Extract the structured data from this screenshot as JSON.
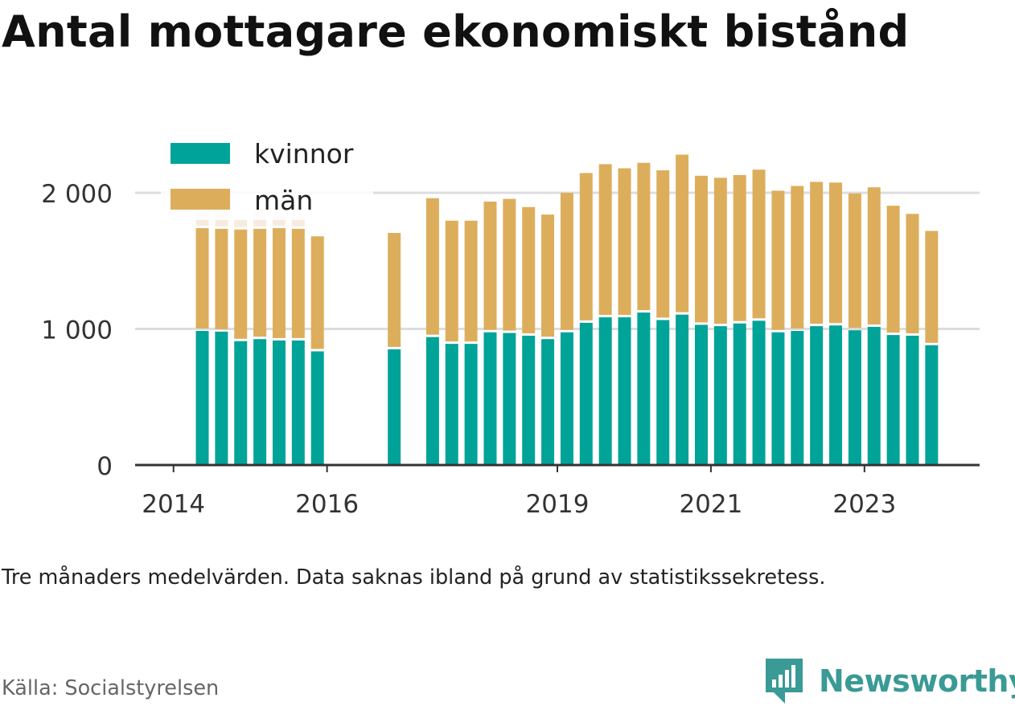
{
  "title": "Antal mottagare ekonomiskt bistånd",
  "note": "Tre månaders medelvärden. Data saknas ibland på grund av statistikssekretess.",
  "source": "Källa: Socialstyrelsen",
  "brand": {
    "name": "Newsworthy",
    "icon": "newsworthy-logo-icon",
    "color": "#3a9a95"
  },
  "colors": {
    "kvinnor": "#00a398",
    "man": "#dcae5c",
    "man_faded": "#f7ebe0",
    "axis": "#333333",
    "grid": "#dddddd"
  },
  "chart_data": {
    "type": "bar",
    "stacked": true,
    "ylim": [
      0,
      2300
    ],
    "yticks": [
      0,
      1000,
      2000
    ],
    "ytick_labels": [
      "0",
      "1 000",
      "2 000"
    ],
    "xtick_labels": [
      "2014",
      "2016",
      "2019",
      "2021",
      "2023"
    ],
    "xtick_values": [
      2014.0,
      2016.0,
      2019.0,
      2021.0,
      2023.0
    ],
    "x_range": [
      2013.5,
      2024.5
    ],
    "grid": true,
    "legend_position": "top-left",
    "x": [
      2014.375,
      2014.625,
      2014.875,
      2015.125,
      2015.375,
      2015.625,
      2015.875,
      2016.875,
      2017.375,
      2017.625,
      2017.875,
      2018.125,
      2018.375,
      2018.625,
      2018.875,
      2019.125,
      2019.375,
      2019.625,
      2019.875,
      2020.125,
      2020.375,
      2020.625,
      2020.875,
      2021.125,
      2021.375,
      2021.625,
      2021.875,
      2022.125,
      2022.375,
      2022.625,
      2022.875,
      2023.125,
      2023.375,
      2023.625,
      2023.875
    ],
    "series": [
      {
        "name": "kvinnor",
        "values": [
          985,
          980,
          910,
          925,
          915,
          915,
          835,
          850,
          940,
          890,
          890,
          975,
          970,
          950,
          925,
          975,
          1045,
          1085,
          1085,
          1120,
          1065,
          1105,
          1030,
          1020,
          1040,
          1060,
          975,
          985,
          1020,
          1025,
          990,
          1015,
          955,
          950,
          880
        ]
      },
      {
        "name": "män",
        "values": [
          755,
          755,
          820,
          810,
          825,
          820,
          845,
          855,
          1020,
          905,
          905,
          960,
          985,
          945,
          915,
          1025,
          1100,
          1125,
          1095,
          1100,
          1100,
          1175,
          1095,
          1090,
          1090,
          1110,
          1040,
          1065,
          1060,
          1050,
          1005,
          1025,
          950,
          895,
          840
        ]
      },
      {
        "name": "män_faded",
        "values": [
          145,
          145,
          75,
          145,
          90,
          90,
          0,
          0,
          0,
          0,
          0,
          0,
          0,
          0,
          0,
          0,
          0,
          0,
          0,
          0,
          0,
          0,
          0,
          0,
          0,
          0,
          0,
          0,
          0,
          0,
          0,
          0,
          0,
          0,
          0
        ]
      }
    ]
  }
}
